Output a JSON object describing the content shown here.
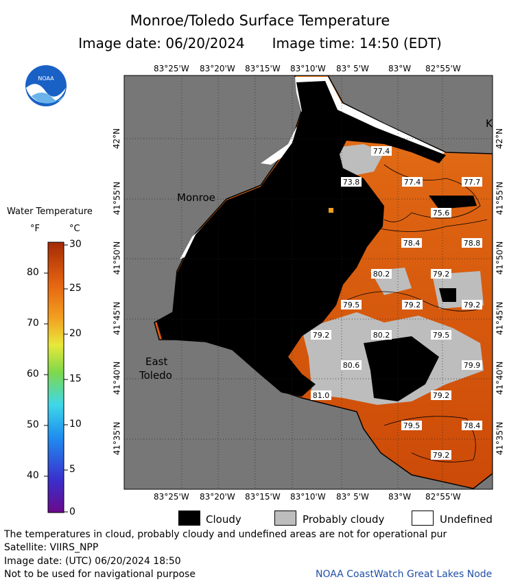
{
  "header": {
    "title": "Monroe/Toledo Surface Temperature",
    "image_date": "Image date: 06/20/2024",
    "image_time": "Image time: 14:50 (EDT)"
  },
  "logo": {
    "icon": "noaa-logo-icon",
    "text": "NOAA"
  },
  "map": {
    "lon_ticks": [
      "83°25'W",
      "83°20'W",
      "83°15'W",
      "83°10'W",
      "83° 5'W",
      "83°W",
      "82°55'W"
    ],
    "lat_ticks_left": [
      "42°N",
      "41°55'N",
      "41°50'N",
      "41°45'N",
      "41°40'N",
      "41°35'N"
    ],
    "lat_ticks_right": [
      "42°N",
      "41°55'N",
      "41°50'N",
      "41°45'N",
      "41°40'N",
      "41°35'N"
    ],
    "places": {
      "monroe": "Monroe",
      "east": "East",
      "toledo": "Toledo",
      "k": "K"
    },
    "temp_labels": [
      "77.4",
      "73.8",
      "77.4",
      "77.7",
      "75.6",
      "78.4",
      "78.8",
      "80.2",
      "79.2",
      "79.5",
      "79.2",
      "79.2",
      "79.2",
      "80.2",
      "79.5",
      "80.6",
      "79.9",
      "81.0",
      "79.2",
      "79.5",
      "78.4",
      "79.2"
    ],
    "colors": {
      "land": "#777777",
      "cloud": "#000000",
      "probably_cloudy": "#bdbdbd",
      "undefined": "#ffffff",
      "water": "#d9520e"
    }
  },
  "colorbar": {
    "title": "Water Temperature",
    "unit_f": "°F",
    "unit_c": "°C",
    "f_labels": [
      "80",
      "70",
      "60",
      "50",
      "40"
    ],
    "c_labels": [
      "30",
      "25",
      "20",
      "15",
      "10",
      "5",
      "0"
    ]
  },
  "legend": {
    "cloudy": "Cloudy",
    "probably_cloudy": "Probably cloudy",
    "undefined": "Undefined"
  },
  "footer": {
    "note": "The temperatures in cloud, probably cloudy and undefined areas are not for operational pur",
    "satellite": "Satellite: VIIRS_NPP",
    "utc_date": "Image date: (UTC) 06/20/2024  18:50",
    "nav_note": "Not to be used for navigational purpose",
    "credit": "NOAA CoastWatch Great Lakes Node"
  }
}
